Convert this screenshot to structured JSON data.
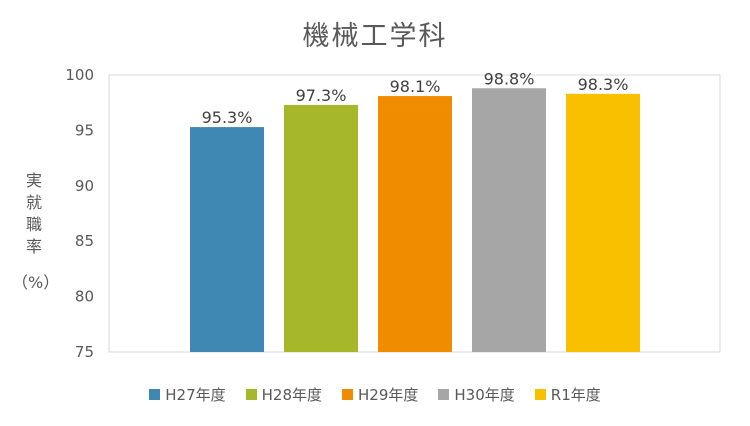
{
  "chart_data": {
    "type": "bar",
    "title": "機械工学科",
    "ylabel": "実就職率",
    "ylabel_unit": "（%）",
    "categories": [
      "H27年度",
      "H28年度",
      "H29年度",
      "H30年度",
      "R1年度"
    ],
    "values": [
      95.3,
      97.3,
      98.1,
      98.8,
      98.3
    ],
    "data_labels": [
      "95.3%",
      "97.3%",
      "98.1%",
      "98.8%",
      "98.3%"
    ],
    "colors": [
      "#3F88B4",
      "#A6B829",
      "#F08C00",
      "#A6A6A6",
      "#F9C000"
    ],
    "ylim": [
      75,
      100
    ],
    "yticks": [
      75,
      80,
      85,
      90,
      95,
      100
    ],
    "grid": false,
    "legend": "bottom"
  }
}
